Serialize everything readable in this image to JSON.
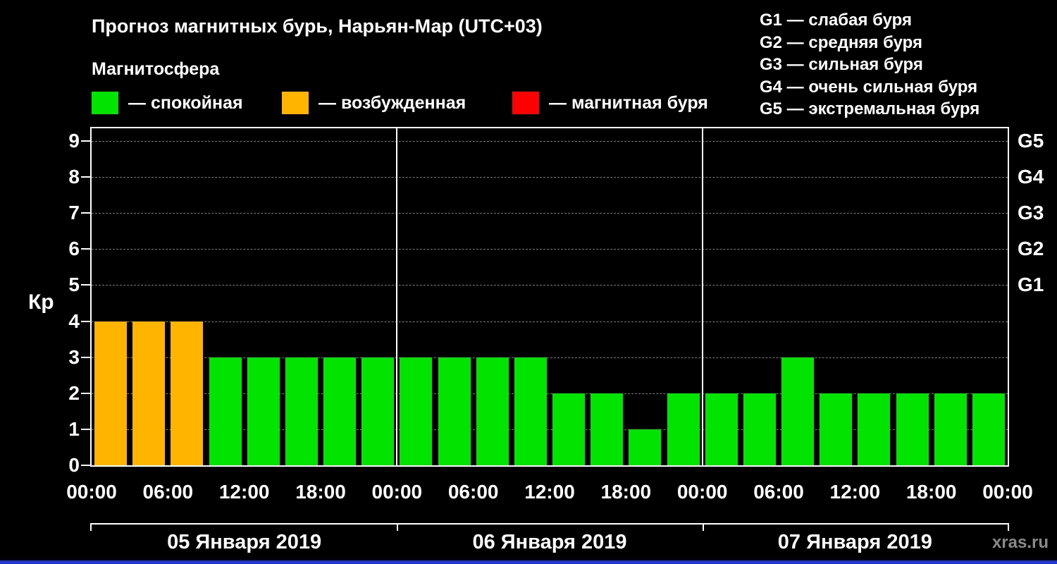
{
  "header": {
    "title": "Прогноз магнитных бурь, Нарьян-Мар (UTC+03)",
    "subtitle": "Магнитосфера"
  },
  "legend": {
    "items": [
      {
        "name": "quiet",
        "label": "— спокойная",
        "color": "#00e400"
      },
      {
        "name": "excited",
        "label": "— возбужденная",
        "color": "#ffb400"
      },
      {
        "name": "storm",
        "label": "— магнитная буря",
        "color": "#ff0000"
      }
    ]
  },
  "storm_scale_legend": [
    "G1 — слабая буря",
    "G2 — средняя буря",
    "G3 — сильная буря",
    "G4 — очень сильная буря",
    "G5 — экстремальная буря"
  ],
  "watermark": "xras.ru",
  "chart_data": {
    "type": "bar",
    "title": "Прогноз магнитных бурь, Нарьян-Мар (UTC+03)",
    "ylabel": "Кр",
    "ylim": [
      0,
      9.35
    ],
    "yticks": [
      0,
      1,
      2,
      3,
      4,
      5,
      6,
      7,
      8,
      9
    ],
    "grid": true,
    "right_axis_labels": [
      {
        "label": "G1",
        "value": 5
      },
      {
        "label": "G2",
        "value": 6
      },
      {
        "label": "G3",
        "value": 7
      },
      {
        "label": "G4",
        "value": 8
      },
      {
        "label": "G5",
        "value": 9
      }
    ],
    "time_ticks": [
      "00:00",
      "06:00",
      "12:00",
      "18:00"
    ],
    "end_tick": "00:00",
    "interval_hours": 3,
    "colors": {
      "quiet": "#00e400",
      "excited": "#ffb400",
      "storm": "#ff0000"
    },
    "days": [
      {
        "date": "05 Января 2019",
        "values": [
          4,
          4,
          4,
          3,
          3,
          3,
          3,
          3
        ],
        "status": [
          "excited",
          "excited",
          "excited",
          "quiet",
          "quiet",
          "quiet",
          "quiet",
          "quiet"
        ]
      },
      {
        "date": "06 Января 2019",
        "values": [
          3,
          3,
          3,
          3,
          2,
          2,
          1,
          2
        ],
        "status": [
          "quiet",
          "quiet",
          "quiet",
          "quiet",
          "quiet",
          "quiet",
          "quiet",
          "quiet"
        ]
      },
      {
        "date": "07 Января 2019",
        "values": [
          2,
          2,
          3,
          2,
          2,
          2,
          2,
          2
        ],
        "status": [
          "quiet",
          "quiet",
          "quiet",
          "quiet",
          "quiet",
          "quiet",
          "quiet",
          "quiet"
        ]
      }
    ]
  }
}
